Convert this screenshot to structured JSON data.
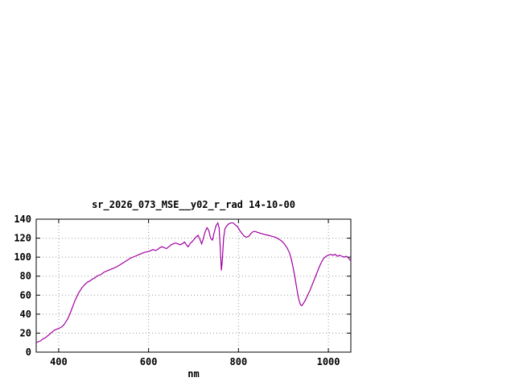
{
  "window": {
    "background": "#ffffff"
  },
  "chart_data": {
    "type": "line",
    "title": "sr_2026_073_MSE__y02_r_rad 14-10-00",
    "xlabel": "nm",
    "ylabel": "",
    "xlim": [
      350,
      1050
    ],
    "ylim": [
      0,
      140
    ],
    "xticks": [
      400,
      600,
      800,
      1000
    ],
    "yticks": [
      0,
      20,
      40,
      60,
      80,
      100,
      120,
      140
    ],
    "grid": true,
    "legend": "none",
    "line_color": "#a000a0",
    "grid_color": "#999999",
    "border_color": "#000000",
    "series": [
      {
        "name": "sr_2026_073_MSE__y02_r_rad",
        "points": [
          [
            350,
            10
          ],
          [
            355,
            11
          ],
          [
            360,
            12
          ],
          [
            365,
            14
          ],
          [
            370,
            15
          ],
          [
            375,
            17
          ],
          [
            380,
            19
          ],
          [
            385,
            21
          ],
          [
            390,
            23
          ],
          [
            395,
            24
          ],
          [
            400,
            25
          ],
          [
            405,
            26
          ],
          [
            408,
            27
          ],
          [
            412,
            29
          ],
          [
            416,
            32
          ],
          [
            420,
            35
          ],
          [
            424,
            39
          ],
          [
            428,
            44
          ],
          [
            432,
            49
          ],
          [
            436,
            54
          ],
          [
            440,
            58
          ],
          [
            444,
            62
          ],
          [
            448,
            65
          ],
          [
            452,
            68
          ],
          [
            456,
            70
          ],
          [
            460,
            72
          ],
          [
            465,
            74
          ],
          [
            470,
            75
          ],
          [
            475,
            77
          ],
          [
            480,
            78
          ],
          [
            485,
            80
          ],
          [
            490,
            81
          ],
          [
            495,
            82
          ],
          [
            500,
            84
          ],
          [
            510,
            86
          ],
          [
            520,
            88
          ],
          [
            530,
            90
          ],
          [
            540,
            93
          ],
          [
            550,
            96
          ],
          [
            560,
            99
          ],
          [
            570,
            101
          ],
          [
            580,
            103
          ],
          [
            590,
            105
          ],
          [
            600,
            106
          ],
          [
            605,
            107
          ],
          [
            610,
            108
          ],
          [
            615,
            107
          ],
          [
            620,
            108
          ],
          [
            625,
            110
          ],
          [
            630,
            111
          ],
          [
            635,
            110
          ],
          [
            640,
            109
          ],
          [
            645,
            111
          ],
          [
            650,
            113
          ],
          [
            655,
            114
          ],
          [
            660,
            115
          ],
          [
            665,
            114
          ],
          [
            670,
            113
          ],
          [
            675,
            114
          ],
          [
            680,
            116
          ],
          [
            684,
            113
          ],
          [
            688,
            111
          ],
          [
            692,
            114
          ],
          [
            696,
            116
          ],
          [
            700,
            118
          ],
          [
            705,
            121
          ],
          [
            710,
            123
          ],
          [
            714,
            119
          ],
          [
            718,
            114
          ],
          [
            722,
            120
          ],
          [
            726,
            127
          ],
          [
            730,
            131
          ],
          [
            734,
            128
          ],
          [
            738,
            120
          ],
          [
            742,
            118
          ],
          [
            746,
            126
          ],
          [
            750,
            133
          ],
          [
            754,
            136
          ],
          [
            757,
            131
          ],
          [
            760,
            106
          ],
          [
            762,
            86
          ],
          [
            764,
            96
          ],
          [
            767,
            120
          ],
          [
            770,
            130
          ],
          [
            774,
            133
          ],
          [
            778,
            135
          ],
          [
            783,
            136
          ],
          [
            788,
            136
          ],
          [
            793,
            134
          ],
          [
            798,
            132
          ],
          [
            803,
            128
          ],
          [
            808,
            125
          ],
          [
            813,
            122
          ],
          [
            818,
            121
          ],
          [
            823,
            122
          ],
          [
            828,
            125
          ],
          [
            833,
            127
          ],
          [
            838,
            127
          ],
          [
            843,
            126
          ],
          [
            850,
            125
          ],
          [
            858,
            124
          ],
          [
            866,
            123
          ],
          [
            874,
            122
          ],
          [
            882,
            121
          ],
          [
            890,
            119
          ],
          [
            896,
            117
          ],
          [
            902,
            114
          ],
          [
            908,
            110
          ],
          [
            914,
            104
          ],
          [
            918,
            97
          ],
          [
            922,
            88
          ],
          [
            926,
            78
          ],
          [
            930,
            66
          ],
          [
            934,
            56
          ],
          [
            938,
            50
          ],
          [
            941,
            49
          ],
          [
            944,
            51
          ],
          [
            948,
            54
          ],
          [
            952,
            58
          ],
          [
            956,
            62
          ],
          [
            960,
            66
          ],
          [
            965,
            72
          ],
          [
            970,
            78
          ],
          [
            975,
            84
          ],
          [
            980,
            90
          ],
          [
            985,
            95
          ],
          [
            990,
            99
          ],
          [
            995,
            101
          ],
          [
            1000,
            102
          ],
          [
            1005,
            103
          ],
          [
            1010,
            102
          ],
          [
            1015,
            103
          ],
          [
            1020,
            101
          ],
          [
            1025,
            102
          ],
          [
            1030,
            101
          ],
          [
            1035,
            100
          ],
          [
            1040,
            101
          ],
          [
            1045,
            99
          ],
          [
            1050,
            96
          ]
        ]
      }
    ]
  }
}
